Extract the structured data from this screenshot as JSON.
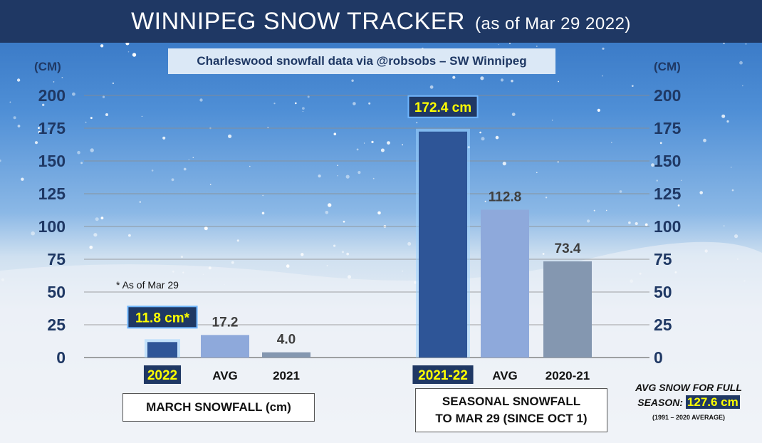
{
  "header": {
    "title": "WINNIPEG SNOW TRACKER",
    "subtitle": "(as of Mar 29 2022)"
  },
  "source_label": "Charleswood snowfall data via @robsobs – SW Winnipeg",
  "unit_left": "(CM)",
  "unit_right": "(CM)",
  "footnote": "* As of Mar 29",
  "groups": {
    "march": "MARCH SNOWFALL (cm)",
    "seasonal_line1": "SEASONAL SNOWFALL",
    "seasonal_line2": "TO MAR 29 (SINCE OCT 1)"
  },
  "avg_note": {
    "line1": "AVG SNOW FOR FULL",
    "line2_prefix": "SEASON:",
    "value": "127.6 cm",
    "line3": "(1991 – 2020  AVERAGE)"
  },
  "colors": {
    "current": "#2e5597",
    "avg": "#8ea9db",
    "previous": "#8497b0",
    "highlight_bg": "#1f3864",
    "highlight_text": "#ffff00",
    "label": "#1f3864",
    "value": "#3f3f3f"
  },
  "chart_data": {
    "type": "bar",
    "ylabel": "(CM)",
    "ylim": [
      0,
      200
    ],
    "yticks": [
      0,
      25,
      50,
      75,
      100,
      125,
      150,
      175,
      200
    ],
    "grid": true,
    "bars": [
      {
        "group": "march",
        "category": "2022",
        "value": 11.8,
        "label": "11.8 cm*",
        "kind": "current",
        "highlight": true
      },
      {
        "group": "march",
        "category": "AVG",
        "value": 17.2,
        "label": "17.2",
        "kind": "avg",
        "highlight": false
      },
      {
        "group": "march",
        "category": "2021",
        "value": 4.0,
        "label": "4.0",
        "kind": "previous",
        "highlight": false
      },
      {
        "group": "seasonal",
        "category": "2021-22",
        "value": 172.4,
        "label": "172.4 cm",
        "kind": "current",
        "highlight": true
      },
      {
        "group": "seasonal",
        "category": "AVG",
        "value": 112.8,
        "label": "112.8",
        "kind": "avg",
        "highlight": false
      },
      {
        "group": "seasonal",
        "category": "2020-21",
        "value": 73.4,
        "label": "73.4",
        "kind": "previous",
        "highlight": false
      }
    ]
  }
}
